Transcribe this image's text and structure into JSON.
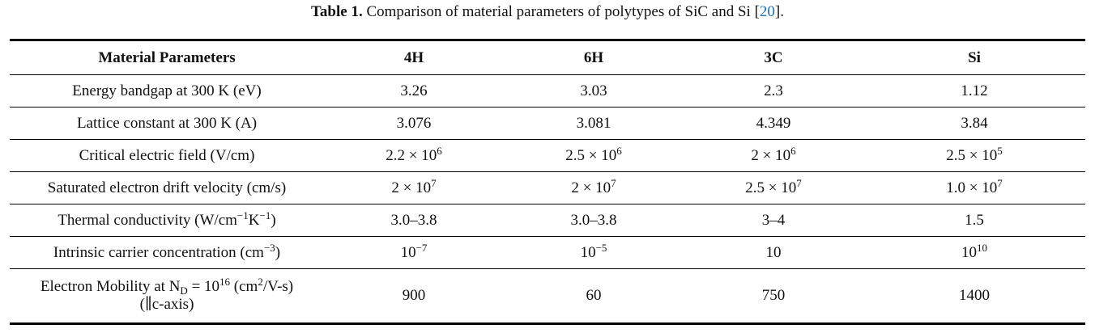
{
  "caption": {
    "label": "Table 1.",
    "text": " Comparison of material parameters of polytypes of SiC and Si [",
    "ref": "20",
    "end": "]."
  },
  "table": {
    "headers": [
      "Material Parameters",
      "4H",
      "6H",
      "3C",
      "Si"
    ],
    "rows": [
      [
        [
          {
            "t": "Energy bandgap at 300 K (eV)"
          }
        ],
        [
          {
            "t": "3.26"
          }
        ],
        [
          {
            "t": "3.03"
          }
        ],
        [
          {
            "t": "2.3"
          }
        ],
        [
          {
            "t": "1.12"
          }
        ]
      ],
      [
        [
          {
            "t": "Lattice constant at 300 K (A)"
          }
        ],
        [
          {
            "t": "3.076"
          }
        ],
        [
          {
            "t": "3.081"
          }
        ],
        [
          {
            "t": "4.349"
          }
        ],
        [
          {
            "t": "3.84"
          }
        ]
      ],
      [
        [
          {
            "t": "Critical electric field (V/cm)"
          }
        ],
        [
          {
            "t": "2.2 × 10"
          },
          {
            "sup": "6"
          }
        ],
        [
          {
            "t": "2.5 × 10"
          },
          {
            "sup": "6"
          }
        ],
        [
          {
            "t": "2 × 10"
          },
          {
            "sup": "6"
          }
        ],
        [
          {
            "t": "2.5 × 10"
          },
          {
            "sup": "5"
          }
        ]
      ],
      [
        [
          {
            "t": "Saturated electron drift velocity (cm/s)"
          }
        ],
        [
          {
            "t": "2 × 10"
          },
          {
            "sup": "7"
          }
        ],
        [
          {
            "t": "2 × 10"
          },
          {
            "sup": "7"
          }
        ],
        [
          {
            "t": "2.5 × 10"
          },
          {
            "sup": "7"
          }
        ],
        [
          {
            "t": "1.0 × 10"
          },
          {
            "sup": "7"
          }
        ]
      ],
      [
        [
          {
            "t": "Thermal conductivity (W/cm"
          },
          {
            "sup": "−1"
          },
          {
            "t": "K"
          },
          {
            "sup": "−1"
          },
          {
            "t": ")"
          }
        ],
        [
          {
            "t": "3.0–3.8"
          }
        ],
        [
          {
            "t": "3.0–3.8"
          }
        ],
        [
          {
            "t": "3–4"
          }
        ],
        [
          {
            "t": "1.5"
          }
        ]
      ],
      [
        [
          {
            "t": "Intrinsic carrier concentration (cm"
          },
          {
            "sup": "−3"
          },
          {
            "t": ")"
          }
        ],
        [
          {
            "t": "10"
          },
          {
            "sup": "−7"
          }
        ],
        [
          {
            "t": "10"
          },
          {
            "sup": "−5"
          }
        ],
        [
          {
            "t": "10"
          }
        ],
        [
          {
            "t": "10"
          },
          {
            "sup": "10"
          }
        ]
      ],
      [
        [
          {
            "t": "Electron Mobility at N"
          },
          {
            "sub": "D"
          },
          {
            "t": " = 10"
          },
          {
            "sup": "16"
          },
          {
            "t": " (cm"
          },
          {
            "sup": "2"
          },
          {
            "t": "/V-s)"
          },
          {
            "br": true
          },
          {
            "t": "(∥c-axis)"
          }
        ],
        [
          {
            "t": "900"
          }
        ],
        [
          {
            "t": "60"
          }
        ],
        [
          {
            "t": "750"
          }
        ],
        [
          {
            "t": "1400"
          }
        ]
      ]
    ]
  }
}
